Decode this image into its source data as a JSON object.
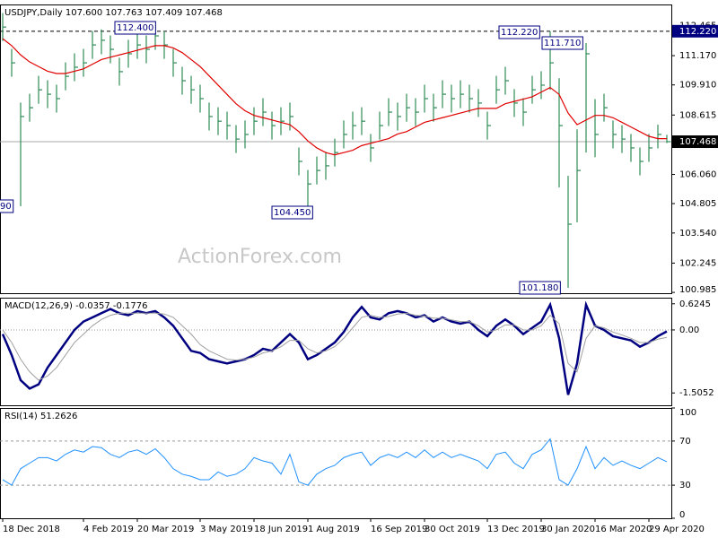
{
  "watermark": "ActionForex.com",
  "annotations": [
    "112.400",
    "112.220",
    "111.710",
    "104.450",
    "101.180",
    "90"
  ],
  "chart_data": [
    {
      "type": "ohlc",
      "title": "USDJPY,Daily  107.600 107.763 107.409 107.468",
      "ylim": [
        100.95,
        113.37
      ],
      "yticks": [
        {
          "value": 112.465,
          "label": "112.465"
        },
        {
          "value": 111.17,
          "label": "111.170"
        },
        {
          "value": 109.91,
          "label": "109.910"
        },
        {
          "value": 108.615,
          "label": "108.615"
        },
        {
          "value": 106.06,
          "label": "106.060"
        },
        {
          "value": 104.805,
          "label": "104.805"
        },
        {
          "value": 103.54,
          "label": "103.540"
        },
        {
          "value": 102.245,
          "label": "102.245"
        },
        {
          "value": 100.985,
          "label": "100.985"
        }
      ],
      "hlines": [
        {
          "value": 112.22,
          "label": "112.220",
          "style": "dashed"
        },
        {
          "value": 107.468,
          "label": "107.468",
          "style": "solid"
        }
      ],
      "color": "#2e8b57",
      "high": [
        113.0,
        111.46,
        109.15,
        109.53,
        110.3,
        110.11,
        109.92,
        110.88,
        111.27,
        111.46,
        112.23,
        112.3,
        112.04,
        111.08,
        111.85,
        112.23,
        112.04,
        112.4,
        112.23,
        111.46,
        110.69,
        110.3,
        109.92,
        109.15,
        108.95,
        108.76,
        108.18,
        108.38,
        108.95,
        109.34,
        108.76,
        108.95,
        109.15,
        107.22,
        106.25,
        106.83,
        107.03,
        107.6,
        108.38,
        108.76,
        108.95,
        107.8,
        108.76,
        109.34,
        109.15,
        109.53,
        109.34,
        109.92,
        109.53,
        110.11,
        109.92,
        110.11,
        109.92,
        109.73,
        108.76,
        110.3,
        110.69,
        109.73,
        109.34,
        110.3,
        110.5,
        112.22,
        110.2,
        106.0,
        108.0,
        111.71,
        109.3,
        109.53,
        108.38,
        108.18,
        107.8,
        107.22,
        107.8,
        108.2,
        107.763
      ],
      "low": [
        111.8,
        110.26,
        104.69,
        108.33,
        109.1,
        108.91,
        108.72,
        109.68,
        110.07,
        110.26,
        111.03,
        111.23,
        110.84,
        109.88,
        110.65,
        111.03,
        110.84,
        111.42,
        111.03,
        110.26,
        109.49,
        109.1,
        108.72,
        107.95,
        107.75,
        107.56,
        106.98,
        107.18,
        107.75,
        108.14,
        107.56,
        107.75,
        107.95,
        106.02,
        104.45,
        105.63,
        105.83,
        106.4,
        107.18,
        107.56,
        107.75,
        106.6,
        107.56,
        108.14,
        107.95,
        108.33,
        108.14,
        108.72,
        108.33,
        108.91,
        108.72,
        108.91,
        108.72,
        108.53,
        107.56,
        109.1,
        109.49,
        108.53,
        108.14,
        109.1,
        109.3,
        109.7,
        105.5,
        101.18,
        104.0,
        107.0,
        106.8,
        108.33,
        107.18,
        106.98,
        106.6,
        106.02,
        106.6,
        107.18,
        107.409
      ],
      "close": [
        112.4,
        110.86,
        108.55,
        108.93,
        109.7,
        109.51,
        109.32,
        110.28,
        110.67,
        110.86,
        111.63,
        111.83,
        111.44,
        110.48,
        111.25,
        111.63,
        111.44,
        112.02,
        111.63,
        110.86,
        110.09,
        109.7,
        109.32,
        108.55,
        108.35,
        108.16,
        107.58,
        107.78,
        108.35,
        108.74,
        108.16,
        108.35,
        108.55,
        106.62,
        105.65,
        106.23,
        106.43,
        107.0,
        107.78,
        108.16,
        108.35,
        107.2,
        108.16,
        108.74,
        108.55,
        108.93,
        108.74,
        109.32,
        108.93,
        109.51,
        109.32,
        109.51,
        109.32,
        109.13,
        108.16,
        109.7,
        110.09,
        109.13,
        108.74,
        109.7,
        109.9,
        110.86,
        108.16,
        103.92,
        106.23,
        111.25,
        107.78,
        108.93,
        107.78,
        107.58,
        107.2,
        106.62,
        107.2,
        107.78,
        107.468
      ],
      "series": [
        {
          "color": "#e00000",
          "values": [
            111.9,
            111.6,
            111.2,
            110.9,
            110.7,
            110.5,
            110.4,
            110.4,
            110.5,
            110.6,
            110.8,
            111.0,
            111.1,
            111.2,
            111.3,
            111.4,
            111.5,
            111.6,
            111.6,
            111.5,
            111.3,
            111.0,
            110.7,
            110.3,
            109.9,
            109.5,
            109.1,
            108.8,
            108.6,
            108.5,
            108.4,
            108.3,
            108.2,
            107.9,
            107.5,
            107.2,
            107.0,
            106.9,
            107.0,
            107.1,
            107.3,
            107.4,
            107.5,
            107.6,
            107.8,
            107.9,
            108.1,
            108.3,
            108.4,
            108.5,
            108.6,
            108.7,
            108.8,
            108.9,
            108.9,
            108.9,
            109.1,
            109.2,
            109.3,
            109.4,
            109.6,
            109.8,
            109.5,
            108.7,
            108.2,
            108.4,
            108.6,
            108.6,
            108.5,
            108.3,
            108.1,
            107.9,
            107.7,
            107.6,
            107.6
          ]
        }
      ]
    },
    {
      "type": "line",
      "title": "MACD(12,26,9) -0.0357 -0.1776",
      "ylim": [
        -1.8,
        0.77
      ],
      "yticks": [
        0.6245,
        {
          "value": 0,
          "label": "0.00"
        },
        -1.5052
      ],
      "series": [
        {
          "color": "#000080",
          "width": 2.5,
          "values": [
            -0.1,
            -0.6,
            -1.2,
            -1.4,
            -1.3,
            -0.9,
            -0.6,
            -0.3,
            0.0,
            0.2,
            0.3,
            0.4,
            0.5,
            0.4,
            0.35,
            0.45,
            0.4,
            0.45,
            0.3,
            0.1,
            -0.2,
            -0.5,
            -0.55,
            -0.7,
            -0.75,
            -0.8,
            -0.75,
            -0.7,
            -0.6,
            -0.45,
            -0.5,
            -0.3,
            -0.1,
            -0.3,
            -0.7,
            -0.6,
            -0.45,
            -0.3,
            -0.05,
            0.3,
            0.55,
            0.3,
            0.25,
            0.4,
            0.45,
            0.4,
            0.3,
            0.35,
            0.2,
            0.3,
            0.2,
            0.15,
            0.2,
            0.0,
            -0.15,
            0.1,
            0.25,
            0.1,
            -0.1,
            0.05,
            0.2,
            0.6,
            -0.2,
            -1.55,
            -0.8,
            0.6,
            0.1,
            0.0,
            -0.15,
            -0.2,
            -0.25,
            -0.4,
            -0.3,
            -0.15,
            -0.0357
          ]
        },
        {
          "color": "#a0a0a0",
          "width": 1,
          "values": [
            0.0,
            -0.3,
            -0.7,
            -1.0,
            -1.2,
            -1.1,
            -0.9,
            -0.6,
            -0.3,
            -0.1,
            0.1,
            0.25,
            0.35,
            0.4,
            0.4,
            0.4,
            0.4,
            0.4,
            0.38,
            0.3,
            0.1,
            -0.1,
            -0.35,
            -0.5,
            -0.6,
            -0.7,
            -0.72,
            -0.7,
            -0.65,
            -0.55,
            -0.5,
            -0.4,
            -0.25,
            -0.25,
            -0.45,
            -0.55,
            -0.5,
            -0.4,
            -0.2,
            0.05,
            0.3,
            0.35,
            0.3,
            0.32,
            0.38,
            0.4,
            0.35,
            0.33,
            0.28,
            0.28,
            0.24,
            0.2,
            0.2,
            0.1,
            -0.05,
            0.0,
            0.12,
            0.12,
            0.0,
            0.0,
            0.1,
            0.35,
            0.15,
            -0.8,
            -1.0,
            -0.2,
            0.1,
            0.05,
            -0.05,
            -0.12,
            -0.2,
            -0.3,
            -0.3,
            -0.22,
            -0.1776
          ]
        }
      ]
    },
    {
      "type": "line",
      "title": "RSI(14) 51.2626",
      "ylim": [
        0,
        100
      ],
      "yticks": [
        100,
        70,
        30,
        0
      ],
      "levels": [
        70,
        30
      ],
      "categories": [
        "18 Dec 2018",
        null,
        null,
        null,
        null,
        null,
        null,
        null,
        null,
        "4 Feb 2019",
        null,
        null,
        null,
        null,
        null,
        "20 Mar 2019",
        null,
        null,
        null,
        null,
        null,
        null,
        "3 May 2019",
        null,
        null,
        null,
        null,
        null,
        "18 Jun 2019",
        null,
        null,
        null,
        null,
        null,
        "1 Aug 2019",
        null,
        null,
        null,
        null,
        null,
        null,
        "16 Sep 2019",
        null,
        null,
        null,
        null,
        null,
        "30 Oct 2019",
        null,
        null,
        null,
        null,
        null,
        null,
        "13 Dec 2019",
        null,
        null,
        null,
        null,
        null,
        "30 Jan 2020",
        null,
        null,
        null,
        null,
        null,
        "16 Mar 2020",
        null,
        null,
        null,
        null,
        null,
        "29 Apr 2020",
        null,
        null
      ],
      "series": [
        {
          "color": "#1e90ff",
          "width": 1,
          "values": [
            35,
            30,
            45,
            50,
            55,
            55,
            52,
            58,
            62,
            60,
            65,
            64,
            58,
            55,
            60,
            62,
            58,
            63,
            55,
            45,
            40,
            38,
            35,
            35,
            42,
            38,
            40,
            45,
            55,
            52,
            50,
            40,
            58,
            33,
            30,
            40,
            45,
            48,
            55,
            58,
            60,
            48,
            55,
            58,
            55,
            60,
            55,
            62,
            55,
            60,
            55,
            58,
            55,
            52,
            45,
            58,
            60,
            50,
            45,
            58,
            62,
            72,
            35,
            30,
            45,
            65,
            45,
            55,
            48,
            52,
            48,
            45,
            50,
            55,
            51.2626
          ]
        }
      ]
    }
  ]
}
